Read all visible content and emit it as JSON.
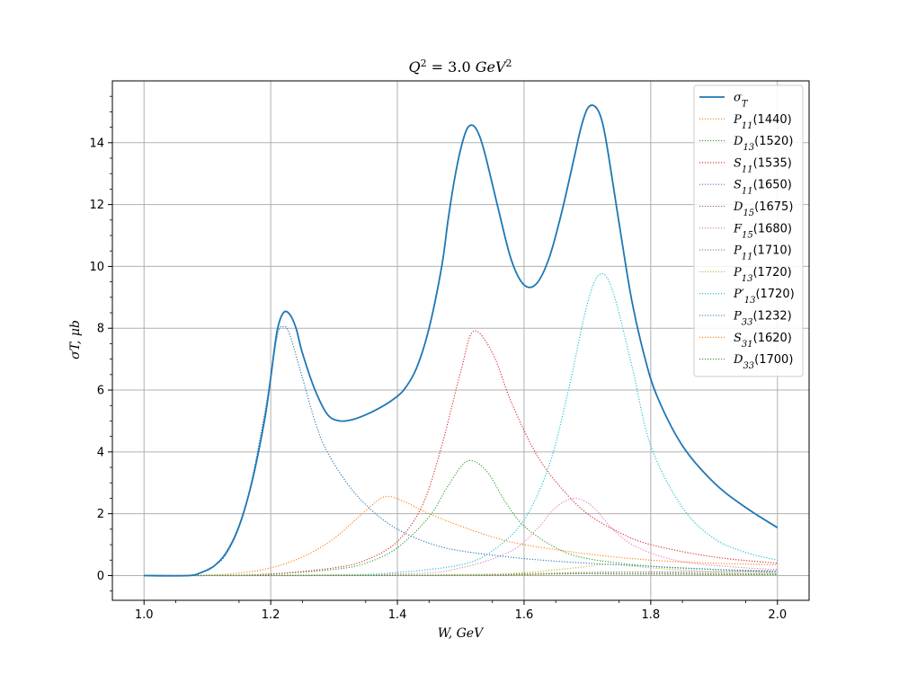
{
  "chart_data": {
    "type": "line",
    "title": "Q² = 3.0 GeV²",
    "title_parts": {
      "q": "Q",
      "exp1": "2",
      "mid": " = 3.0 ",
      "unit": "GeV",
      "exp2": "2"
    },
    "xlabel": "W, GeV",
    "ylabel": "σT, μb",
    "xlim": [
      0.95,
      2.05
    ],
    "ylim": [
      -0.8,
      16.0
    ],
    "xticks": [
      "1.0",
      "1.2",
      "1.4",
      "1.6",
      "1.8",
      "2.0"
    ],
    "xtick_values": [
      1.0,
      1.2,
      1.4,
      1.6,
      1.8,
      2.0
    ],
    "yticks": [
      "0",
      "2",
      "4",
      "6",
      "8",
      "10",
      "12",
      "14"
    ],
    "ytick_values": [
      0,
      2,
      4,
      6,
      8,
      10,
      12,
      14
    ],
    "grid": true,
    "legend_position": "top-right",
    "series": [
      {
        "name": "σT",
        "label_main": "σ",
        "label_sub": "T",
        "label_tail": "",
        "color": "#1f77b4",
        "style": "solid",
        "x": [
          1.0,
          1.07,
          1.09,
          1.11,
          1.13,
          1.15,
          1.17,
          1.19,
          1.2,
          1.21,
          1.22,
          1.23,
          1.24,
          1.25,
          1.27,
          1.29,
          1.31,
          1.33,
          1.35,
          1.37,
          1.39,
          1.41,
          1.43,
          1.45,
          1.47,
          1.48,
          1.49,
          1.5,
          1.51,
          1.52,
          1.53,
          1.54,
          1.56,
          1.58,
          1.6,
          1.62,
          1.64,
          1.66,
          1.68,
          1.69,
          1.7,
          1.71,
          1.72,
          1.73,
          1.75,
          1.77,
          1.79,
          1.81,
          1.85,
          1.9,
          1.95,
          2.0
        ],
        "y": [
          0.0,
          0.0,
          0.1,
          0.3,
          0.75,
          1.6,
          3.0,
          5.0,
          6.4,
          7.9,
          8.5,
          8.45,
          8.0,
          7.2,
          6.0,
          5.2,
          5.0,
          5.05,
          5.2,
          5.4,
          5.65,
          6.0,
          6.7,
          8.0,
          10.0,
          11.5,
          12.8,
          13.8,
          14.45,
          14.55,
          14.2,
          13.5,
          11.8,
          10.2,
          9.4,
          9.45,
          10.3,
          11.8,
          13.6,
          14.5,
          15.1,
          15.2,
          14.9,
          14.0,
          11.4,
          8.9,
          7.1,
          5.8,
          4.2,
          3.0,
          2.2,
          1.55
        ]
      },
      {
        "name": "P11(1440)",
        "label_main": "P",
        "label_sub": "11",
        "label_tail": "(1440)",
        "color": "#ff7f0e",
        "style": "dotted",
        "x": [
          1.0,
          1.1,
          1.15,
          1.2,
          1.25,
          1.3,
          1.35,
          1.38,
          1.41,
          1.45,
          1.5,
          1.55,
          1.6,
          1.7,
          1.8,
          1.9,
          2.0
        ],
        "y": [
          0.0,
          0.02,
          0.08,
          0.25,
          0.6,
          1.2,
          2.1,
          2.55,
          2.4,
          2.0,
          1.6,
          1.25,
          1.0,
          0.7,
          0.5,
          0.4,
          0.35
        ]
      },
      {
        "name": "D13(1520)",
        "label_main": "D",
        "label_sub": "13",
        "label_tail": "(1520)",
        "color": "#2ca02c",
        "style": "dotted",
        "x": [
          1.0,
          1.1,
          1.2,
          1.3,
          1.35,
          1.4,
          1.45,
          1.48,
          1.51,
          1.54,
          1.57,
          1.6,
          1.65,
          1.7,
          1.8,
          1.9,
          2.0
        ],
        "y": [
          0.0,
          0.0,
          0.05,
          0.2,
          0.4,
          0.9,
          1.9,
          2.9,
          3.7,
          3.4,
          2.4,
          1.6,
          0.9,
          0.55,
          0.3,
          0.2,
          0.15
        ]
      },
      {
        "name": "S11(1535)",
        "label_main": "S",
        "label_sub": "11",
        "label_tail": "(1535)",
        "color": "#d62728",
        "style": "dotted",
        "x": [
          1.0,
          1.1,
          1.2,
          1.3,
          1.35,
          1.4,
          1.44,
          1.47,
          1.5,
          1.52,
          1.55,
          1.58,
          1.62,
          1.66,
          1.7,
          1.75,
          1.8,
          1.9,
          2.0
        ],
        "y": [
          0.0,
          0.0,
          0.05,
          0.25,
          0.5,
          1.1,
          2.3,
          4.2,
          6.6,
          7.9,
          7.2,
          5.6,
          3.9,
          2.8,
          2.0,
          1.4,
          1.0,
          0.6,
          0.4
        ]
      },
      {
        "name": "S11(1650)",
        "label_main": "S",
        "label_sub": "11",
        "label_tail": "(1650)",
        "color": "#9467bd",
        "style": "dotted",
        "x": [
          1.0,
          1.3,
          1.5,
          1.6,
          1.65,
          1.7,
          1.8,
          1.9,
          2.0
        ],
        "y": [
          0.0,
          0.0,
          0.02,
          0.05,
          0.08,
          0.1,
          0.12,
          0.13,
          0.15
        ]
      },
      {
        "name": "D15(1675)",
        "label_main": "D",
        "label_sub": "15",
        "label_tail": "(1675)",
        "color": "#8c564b",
        "style": "dotted",
        "x": [
          1.0,
          1.5,
          1.6,
          1.67,
          1.75,
          1.85,
          2.0
        ],
        "y": [
          0.0,
          0.01,
          0.03,
          0.06,
          0.05,
          0.04,
          0.03
        ]
      },
      {
        "name": "F15(1680)",
        "label_main": "F",
        "label_sub": "15",
        "label_tail": "(1680)",
        "color": "#e377c2",
        "style": "dotted",
        "x": [
          1.0,
          1.4,
          1.5,
          1.58,
          1.62,
          1.65,
          1.68,
          1.71,
          1.74,
          1.78,
          1.85,
          1.95,
          2.0
        ],
        "y": [
          0.0,
          0.05,
          0.25,
          0.8,
          1.5,
          2.2,
          2.5,
          2.2,
          1.5,
          0.9,
          0.45,
          0.25,
          0.2
        ]
      },
      {
        "name": "P11(1710)",
        "label_main": "P",
        "label_sub": "11",
        "label_tail": "(1710)",
        "color": "#7f7f7f",
        "style": "dotted",
        "x": [
          1.0,
          1.5,
          1.6,
          1.7,
          1.75,
          1.8,
          1.9,
          2.0
        ],
        "y": [
          0.0,
          0.02,
          0.05,
          0.1,
          0.11,
          0.1,
          0.07,
          0.05
        ]
      },
      {
        "name": "P13(1720)",
        "label_main": "P",
        "label_sub": "13",
        "label_tail": "(1720)",
        "color": "#bcbd22",
        "style": "dotted",
        "x": [
          1.0,
          1.5,
          1.6,
          1.68,
          1.72,
          1.75,
          1.8,
          1.9,
          2.0
        ],
        "y": [
          0.0,
          0.02,
          0.1,
          0.25,
          0.35,
          0.35,
          0.25,
          0.12,
          0.08
        ]
      },
      {
        "name": "P'13(1720)",
        "label_main": "P′",
        "label_sub": "13",
        "label_tail": "(1720)",
        "color": "#17becf",
        "style": "dotted",
        "x": [
          1.0,
          1.3,
          1.4,
          1.5,
          1.55,
          1.6,
          1.64,
          1.67,
          1.7,
          1.72,
          1.74,
          1.77,
          1.8,
          1.85,
          1.9,
          1.95,
          2.0
        ],
        "y": [
          0.0,
          0.02,
          0.1,
          0.35,
          0.8,
          1.8,
          3.6,
          6.0,
          8.8,
          9.75,
          9.2,
          6.8,
          4.2,
          2.2,
          1.2,
          0.75,
          0.5
        ]
      },
      {
        "name": "P33(1232)",
        "label_main": "P",
        "label_sub": "33",
        "label_tail": "(1232)",
        "color": "#1f77b4",
        "style": "dotted",
        "x": [
          1.0,
          1.07,
          1.1,
          1.13,
          1.16,
          1.19,
          1.21,
          1.22,
          1.23,
          1.25,
          1.28,
          1.32,
          1.36,
          1.4,
          1.45,
          1.5,
          1.6,
          1.7,
          1.8,
          1.9,
          2.0
        ],
        "y": [
          0.0,
          0.0,
          0.2,
          0.7,
          2.2,
          5.2,
          7.7,
          8.05,
          7.8,
          6.4,
          4.4,
          3.0,
          2.1,
          1.5,
          1.05,
          0.8,
          0.55,
          0.4,
          0.3,
          0.2,
          0.1
        ]
      },
      {
        "name": "S31(1620)",
        "label_main": "S",
        "label_sub": "31",
        "label_tail": "(1620)",
        "color": "#ff7f0e",
        "style": "dotted",
        "x": [
          1.0,
          1.4,
          1.5,
          1.6,
          1.62,
          1.7,
          1.8,
          1.9,
          2.0
        ],
        "y": [
          0.0,
          0.01,
          0.03,
          0.06,
          0.07,
          0.06,
          0.05,
          0.04,
          0.03
        ]
      },
      {
        "name": "D33(1700)",
        "label_main": "D",
        "label_sub": "33",
        "label_tail": "(1700)",
        "color": "#2ca02c",
        "style": "dotted",
        "x": [
          1.0,
          1.4,
          1.5,
          1.6,
          1.7,
          1.8,
          1.9,
          2.0
        ],
        "y": [
          0.0,
          0.01,
          0.02,
          0.04,
          0.06,
          0.05,
          0.04,
          0.03
        ]
      }
    ]
  }
}
